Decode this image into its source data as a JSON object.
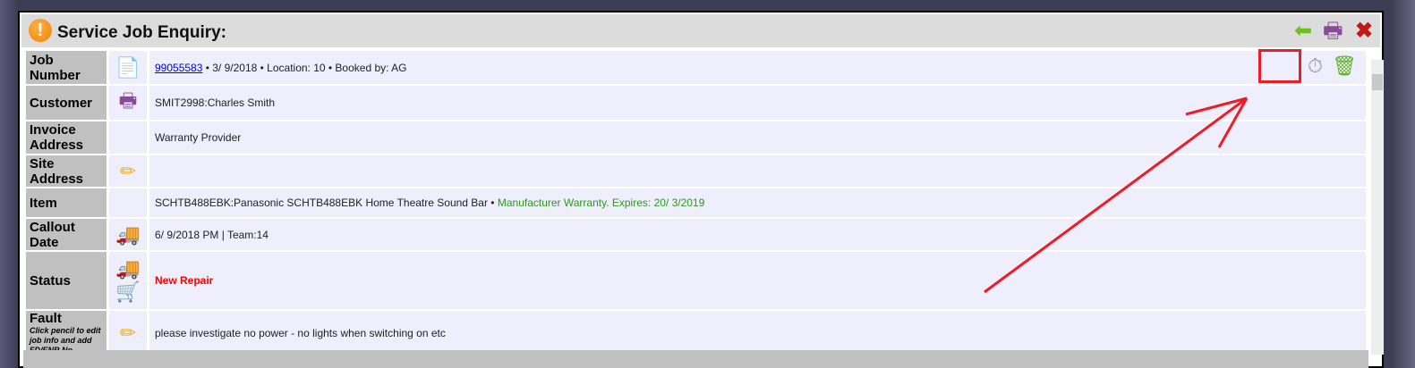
{
  "window": {
    "title": "Service Job Enquiry:",
    "icons": [
      "back-arrow-icon",
      "print-icon",
      "close-icon"
    ]
  },
  "rows": {
    "job": {
      "label": "Job Number",
      "number": "99055583",
      "details": " • 3/ 9/2018 • Location: 10 • Booked by: AG"
    },
    "customer": {
      "label": "Customer",
      "value": "SMIT2998:Charles Smith"
    },
    "invoice": {
      "label": "Invoice Address",
      "value": "Warranty Provider"
    },
    "site": {
      "label": "Site Address",
      "value": ""
    },
    "item": {
      "label": "Item",
      "value": "SCHTB488EBK:Panasonic SCHTB488EBK Home Theatre Sound Bar • ",
      "warranty": "Manufacturer Warranty. Expires: 20/ 3/2019"
    },
    "callout": {
      "label": "Callout Date",
      "value": "6/ 9/2018 PM | Team:14"
    },
    "status": {
      "label": "Status",
      "value": "New Repair"
    },
    "fault": {
      "label": "Fault",
      "hint": "Click pencil to edit job info and add FD/ENR No",
      "value": "please investigate no power - no lights when switching on etc"
    }
  },
  "colors": {
    "annotation": "#ee1c25",
    "warranty": "#2a9a1a",
    "status": "#ff0000"
  }
}
